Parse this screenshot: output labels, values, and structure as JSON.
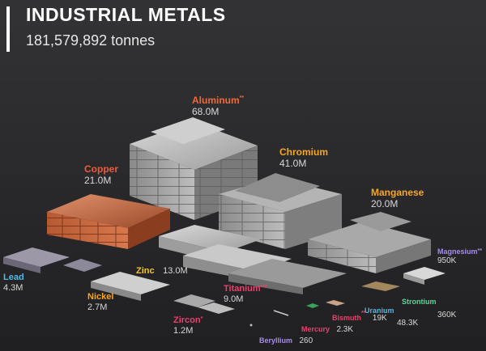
{
  "header": {
    "title": "INDUSTRIAL METALS",
    "subtitle": "181,579,892 tonnes"
  },
  "colors": {
    "background": "#2b2b2d",
    "title": "#ffffff",
    "accent_bar": "#ffffff"
  },
  "chart_data": {
    "type": "pictograph",
    "title": "INDUSTRIAL METALS",
    "total": "181,579,892 tonnes",
    "unit": "tonnes",
    "items": [
      {
        "id": "aluminum",
        "name": "Aluminum",
        "mark": "**",
        "value": 68000000,
        "label": "68.0M",
        "color": "#ee6a3c"
      },
      {
        "id": "chromium",
        "name": "Chromium",
        "mark": "",
        "value": 41000000,
        "label": "41.0M",
        "color": "#f5a623"
      },
      {
        "id": "copper",
        "name": "Copper",
        "mark": "",
        "value": 21000000,
        "label": "21.0M",
        "color": "#f05a3a"
      },
      {
        "id": "manganese",
        "name": "Manganese",
        "mark": "",
        "value": 20000000,
        "label": "20.0M",
        "color": "#f5a623"
      },
      {
        "id": "zinc",
        "name": "Zinc",
        "mark": "",
        "value": 13000000,
        "label": "13.0M",
        "color": "#f5c518"
      },
      {
        "id": "titanium",
        "name": "Titanium",
        "mark": "***",
        "value": 9000000,
        "label": "9.0M",
        "color": "#ee3f6d"
      },
      {
        "id": "lead",
        "name": "Lead",
        "mark": "",
        "value": 4300000,
        "label": "4.3M",
        "color": "#4fb9e3"
      },
      {
        "id": "nickel",
        "name": "Nickel",
        "mark": "",
        "value": 2700000,
        "label": "2.7M",
        "color": "#f5a623"
      },
      {
        "id": "zircon",
        "name": "Zircon",
        "mark": "*",
        "value": 1200000,
        "label": "1.2M",
        "color": "#ee3f6d"
      },
      {
        "id": "magnesium",
        "name": "Magnesium",
        "mark": "**",
        "value": 950000,
        "label": "950K",
        "color": "#a88be8"
      },
      {
        "id": "strontium",
        "name": "Strontium",
        "mark": "",
        "value": 360000,
        "label": "360K",
        "color": "#5fd39a"
      },
      {
        "id": "uranium",
        "name": "Uranium",
        "mark": "",
        "value": 48300,
        "label": "48.3K",
        "color": "#4fb9e3"
      },
      {
        "id": "bismuth",
        "name": "Bismuth",
        "mark": "**",
        "value": 19000,
        "label": "19K",
        "color": "#ee3f6d"
      },
      {
        "id": "mercury",
        "name": "Mercury",
        "mark": "",
        "value": 2300,
        "label": "2.3K",
        "color": "#ee3f6d"
      },
      {
        "id": "beryllium",
        "name": "Beryllium",
        "mark": "",
        "value": 260,
        "label": "260",
        "color": "#a88be8"
      }
    ]
  }
}
